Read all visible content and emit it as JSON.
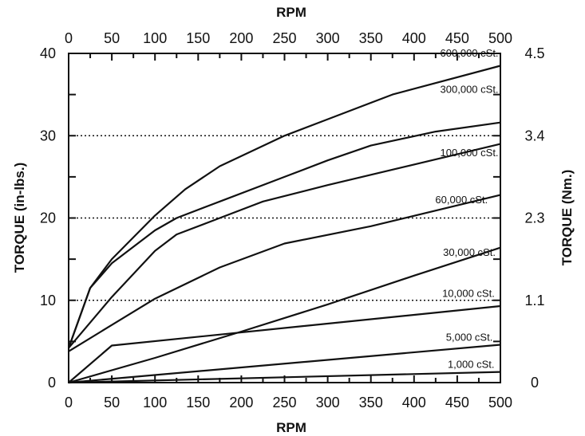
{
  "chart_data": {
    "type": "line",
    "title": "",
    "xlabel": "RPM",
    "x2label": "RPM",
    "ylabel": "TORQUE (in-lbs.)",
    "y2label": "TORQUE (Nm.)",
    "xlim": [
      0,
      500
    ],
    "ylim": [
      0,
      40
    ],
    "x_ticks": [
      0,
      50,
      100,
      150,
      200,
      250,
      300,
      350,
      400,
      450,
      500
    ],
    "y_ticks": [
      0,
      10,
      20,
      30,
      40
    ],
    "y2_ticks": [
      {
        "label": "0",
        "at": 0
      },
      {
        "label": "1.1",
        "at": 10
      },
      {
        "label": "2.3",
        "at": 20
      },
      {
        "label": "3.4",
        "at": 30
      },
      {
        "label": "4.5",
        "at": 40
      }
    ],
    "gridlines_y": [
      10,
      20,
      30
    ],
    "grid": "dotted horizontal at 10, 20, 30",
    "series": [
      {
        "name": "600,000 cSt.",
        "x": [
          0,
          25,
          50,
          100,
          135,
          175,
          250,
          300,
          375,
          500
        ],
        "y": [
          4.2,
          11.5,
          15,
          20.3,
          23.5,
          26.3,
          30,
          32,
          35,
          38.5
        ]
      },
      {
        "name": "300,000 cSt.",
        "x": [
          0,
          25,
          50,
          100,
          125,
          175,
          250,
          300,
          350,
          425,
          500
        ],
        "y": [
          4.2,
          11.5,
          14.5,
          18.5,
          20,
          22,
          25,
          27,
          28.8,
          30.5,
          31.6
        ]
      },
      {
        "name": "100,000 cSt.",
        "x": [
          0,
          50,
          100,
          125,
          175,
          225,
          300,
          400,
          500
        ],
        "y": [
          4.2,
          10.4,
          16,
          18,
          20,
          22,
          24,
          26.5,
          29
        ]
      },
      {
        "name": "60,000 cSt.",
        "x": [
          0,
          50,
          100,
          175,
          250,
          350,
          500
        ],
        "y": [
          3.8,
          7,
          10.2,
          14,
          16.9,
          19,
          22.8
        ]
      },
      {
        "name": "30,000 cSt.",
        "x": [
          0,
          100,
          200,
          300,
          400,
          500
        ],
        "y": [
          0,
          3,
          6.2,
          9.5,
          13,
          16.4
        ]
      },
      {
        "name": "10,000 cSt.",
        "x": [
          0,
          50,
          500
        ],
        "y": [
          0,
          4.5,
          9.3
        ]
      },
      {
        "name": "5,000 cSt.",
        "x": [
          0,
          500
        ],
        "y": [
          0,
          4.6
        ]
      },
      {
        "name": "1,000 cSt.",
        "x": [
          0,
          500
        ],
        "y": [
          0,
          1.3
        ]
      }
    ],
    "series_label_pos": [
      {
        "x": 464,
        "y": 39.6
      },
      {
        "x": 464,
        "y": 35.2
      },
      {
        "x": 464,
        "y": 27.5
      },
      {
        "x": 455,
        "y": 21.8
      },
      {
        "x": 464,
        "y": 15.4
      },
      {
        "x": 463,
        "y": 10.4
      },
      {
        "x": 464,
        "y": 5.1
      },
      {
        "x": 466,
        "y": 1.8
      }
    ]
  }
}
